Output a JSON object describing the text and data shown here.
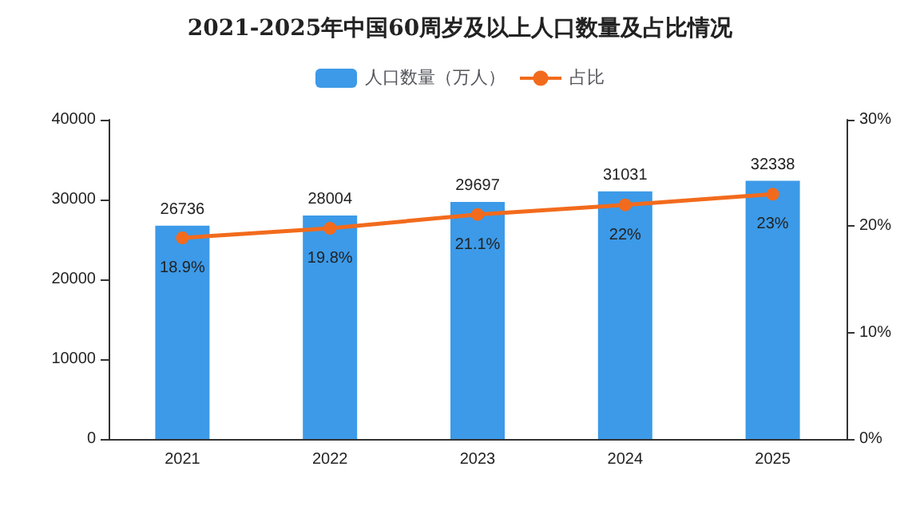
{
  "chart_data": {
    "type": "bar",
    "title": "2021-2025年中国60周岁及以上人口数量及占比情况",
    "categories": [
      "2021",
      "2022",
      "2023",
      "2024",
      "2025"
    ],
    "series": [
      {
        "name": "人口数量（万人）",
        "color": "#3c9ae8",
        "values": [
          26736,
          28004,
          29697,
          31031,
          32338
        ]
      },
      {
        "name": "占比",
        "type": "line",
        "axis": "y2",
        "color": "#f26b1d",
        "marker": "circle",
        "values": [
          18.9,
          19.8,
          21.1,
          22,
          23
        ],
        "value_labels": [
          "18.9%",
          "19.8%",
          "21.1%",
          "22%",
          "23%"
        ]
      }
    ],
    "ylim": [
      0,
      40000
    ],
    "yticks": [
      0,
      10000,
      20000,
      30000,
      40000
    ],
    "y2lim": [
      0,
      30
    ],
    "y2ticks": [
      {
        "value": 0,
        "label": "0%"
      },
      {
        "value": 10,
        "label": "10%"
      },
      {
        "value": 20,
        "label": "20%"
      },
      {
        "value": 30,
        "label": "30%"
      }
    ],
    "data_labels": true,
    "legend": "top"
  }
}
